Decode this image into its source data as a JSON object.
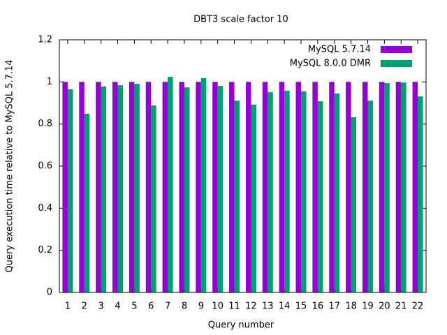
{
  "chart_data": {
    "type": "bar",
    "title": "DBT3 scale factor 10",
    "xlabel": "Query number",
    "ylabel": "Query execution time relative to MySQL 5.7.14",
    "categories": [
      "1",
      "2",
      "3",
      "4",
      "5",
      "6",
      "7",
      "8",
      "9",
      "10",
      "11",
      "12",
      "13",
      "14",
      "15",
      "16",
      "17",
      "18",
      "19",
      "20",
      "21",
      "22"
    ],
    "series": [
      {
        "name": "MySQL 5.7.14",
        "color": "#9400d3",
        "values": [
          1,
          1,
          1,
          1,
          1,
          1,
          1,
          1,
          1,
          1,
          1,
          1,
          1,
          1,
          1,
          1,
          1,
          1,
          1,
          1,
          1,
          1
        ]
      },
      {
        "name": "MySQL 8.0.0 DMR",
        "color": "#009e73",
        "values": [
          0.965,
          0.849,
          0.978,
          0.984,
          0.991,
          0.888,
          1.024,
          0.974,
          1.018,
          0.981,
          0.911,
          0.892,
          0.951,
          0.958,
          0.955,
          0.908,
          0.945,
          0.832,
          0.911,
          0.994,
          0.997,
          0.931
        ]
      }
    ],
    "ylim": [
      0,
      1.2
    ],
    "yticks": [
      0,
      0.2,
      0.4,
      0.6,
      0.8,
      1,
      1.2
    ],
    "legend": "top-right"
  }
}
